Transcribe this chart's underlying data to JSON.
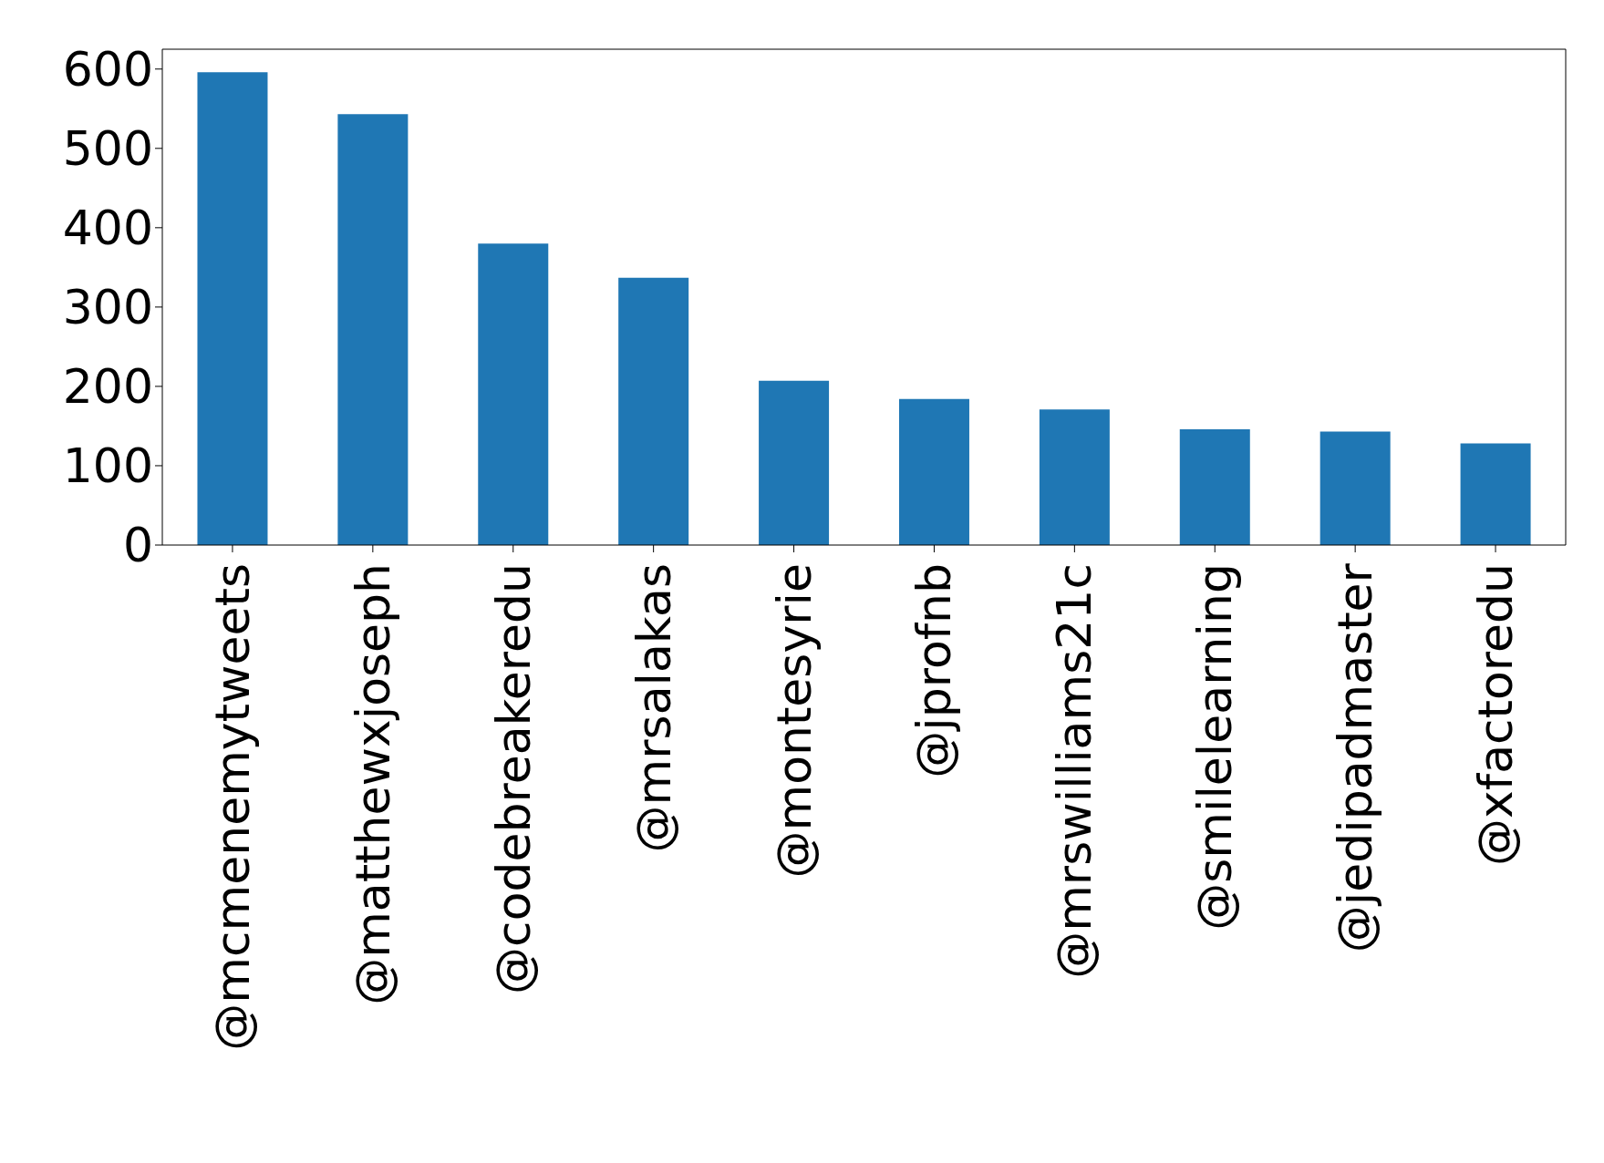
{
  "chart_data": {
    "type": "bar",
    "categories": [
      "@mcmenemytweets",
      "@matthewxjoseph",
      "@codebreakeredu",
      "@mrsalakas",
      "@montesyrie",
      "@jprofnb",
      "@mrswilliams21c",
      "@smilelearning",
      "@jedipadmaster",
      "@xfactoredu"
    ],
    "values": [
      596,
      543,
      380,
      337,
      207,
      184,
      171,
      146,
      143,
      128
    ],
    "color": "#1f77b4",
    "ylim": [
      0,
      625
    ],
    "yticks": [
      0,
      100,
      200,
      300,
      400,
      500,
      600
    ],
    "grid": false
  }
}
